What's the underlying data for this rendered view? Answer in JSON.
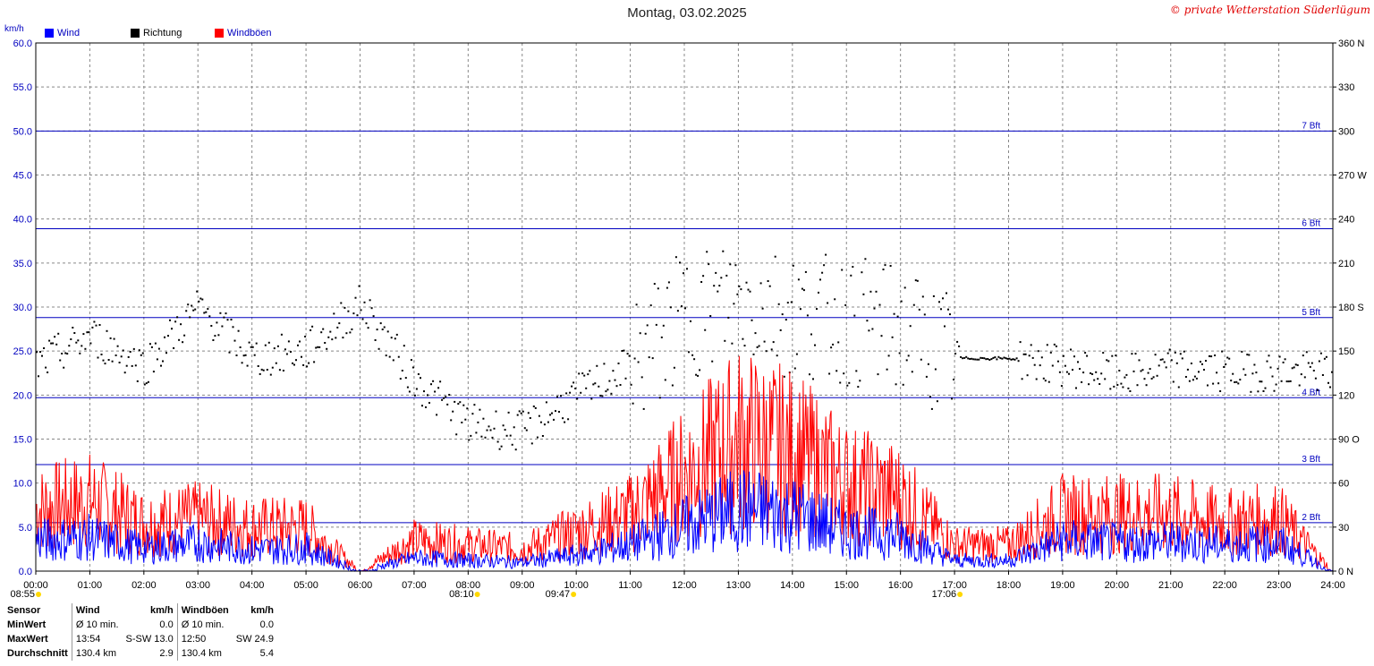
{
  "header": {
    "title": "Montag, 03.02.2025",
    "copyright": "© private Wetterstation Süderlügum",
    "unit_label": "km/h"
  },
  "legend": [
    {
      "label": "Wind",
      "color": "#0000ff"
    },
    {
      "label": "Richtung",
      "color": "#000000"
    },
    {
      "label": "Windböen",
      "color": "#ff0000"
    }
  ],
  "chart_data": {
    "type": "line",
    "x_ticks": [
      "00:00",
      "01:00",
      "02:00",
      "03:00",
      "04:00",
      "05:00",
      "06:00",
      "07:00",
      "08:00",
      "09:00",
      "10:00",
      "11:00",
      "12:00",
      "13:00",
      "14:00",
      "15:00",
      "16:00",
      "17:00",
      "18:00",
      "19:00",
      "20:00",
      "21:00",
      "22:00",
      "23:00",
      "24:00"
    ],
    "y_ticks": [
      "0.0",
      "5.0",
      "10.0",
      "15.0",
      "20.0",
      "25.0",
      "30.0",
      "35.0",
      "40.0",
      "45.0",
      "50.0",
      "55.0",
      "60.0"
    ],
    "ylim": [
      0,
      60
    ],
    "y2_ticks": [
      "0 N",
      "30",
      "60",
      "90 O",
      "120",
      "150",
      "180 S",
      "210",
      "240",
      "270 W",
      "300",
      "330",
      "360 N"
    ],
    "y2lim": [
      0,
      360
    ],
    "beaufort_lines": [
      {
        "label": "2 Bft",
        "value": 5.5
      },
      {
        "label": "3 Bft",
        "value": 12.1
      },
      {
        "label": "4 Bft",
        "value": 19.7
      },
      {
        "label": "5 Bft",
        "value": 28.8
      },
      {
        "label": "6 Bft",
        "value": 38.9
      },
      {
        "label": "7 Bft",
        "value": 50.0
      }
    ],
    "sun_markers": [
      {
        "label": "08:55",
        "hour": 0.05
      },
      {
        "label": "08:10",
        "hour": 8.17
      },
      {
        "label": "09:47",
        "hour": 9.95
      },
      {
        "label": "17:06",
        "hour": 17.1
      }
    ],
    "grid": true,
    "series": [
      {
        "name": "Wind",
        "color": "#0000ff",
        "hours": [
          0,
          1,
          2,
          3,
          4,
          5,
          6,
          7,
          8,
          9,
          10,
          11,
          12,
          13,
          14,
          15,
          16,
          17,
          18,
          19,
          20,
          21,
          22,
          23,
          24
        ],
        "values": [
          3.5,
          3.8,
          2.6,
          3.2,
          2.4,
          2.6,
          0.0,
          1.5,
          1.2,
          1.0,
          1.8,
          3.0,
          5.0,
          7.0,
          6.5,
          4.5,
          4.0,
          1.2,
          1.2,
          3.5,
          3.2,
          3.3,
          3.0,
          3.2,
          0.0
        ]
      },
      {
        "name": "Windböen",
        "color": "#ff0000",
        "hours": [
          0,
          1,
          2,
          3,
          4,
          5,
          6,
          7,
          8,
          9,
          10,
          11,
          12,
          13,
          14,
          15,
          16,
          17,
          18,
          19,
          20,
          21,
          22,
          23,
          24
        ],
        "values": [
          7.0,
          8.0,
          5.5,
          6.0,
          5.0,
          5.0,
          0.0,
          3.5,
          3.0,
          2.5,
          4.5,
          6.5,
          11.0,
          15.0,
          13.5,
          10.0,
          8.5,
          3.0,
          3.0,
          6.5,
          6.5,
          6.5,
          5.5,
          6.0,
          0.0
        ]
      },
      {
        "name": "Richtung",
        "color": "#000000",
        "hours": [
          0,
          1,
          2,
          3,
          4,
          5,
          6,
          7,
          8,
          9,
          10,
          11,
          12,
          13,
          14,
          15,
          16,
          17,
          18,
          19,
          20,
          21,
          22,
          23,
          24
        ],
        "values": [
          140,
          160,
          140,
          180,
          145,
          150,
          182,
          130,
          100,
          95,
          120,
          140,
          175,
          185,
          175,
          170,
          165,
          145,
          145,
          140,
          133,
          138,
          136,
          136,
          135
        ]
      }
    ]
  },
  "stats": {
    "headers": [
      "Sensor",
      "Wind",
      "km/h",
      "Windböen",
      "km/h"
    ],
    "rows": [
      [
        "MinWert",
        "Ø 10 min.",
        "0.0",
        "Ø 10 min.",
        "0.0"
      ],
      [
        "MaxWert",
        "13:54",
        "S-SW 13.0",
        "12:50",
        "SW 24.9"
      ],
      [
        "Durchschnitt",
        "130.4 km",
        "2.9",
        "130.4 km",
        "5.4"
      ]
    ]
  }
}
